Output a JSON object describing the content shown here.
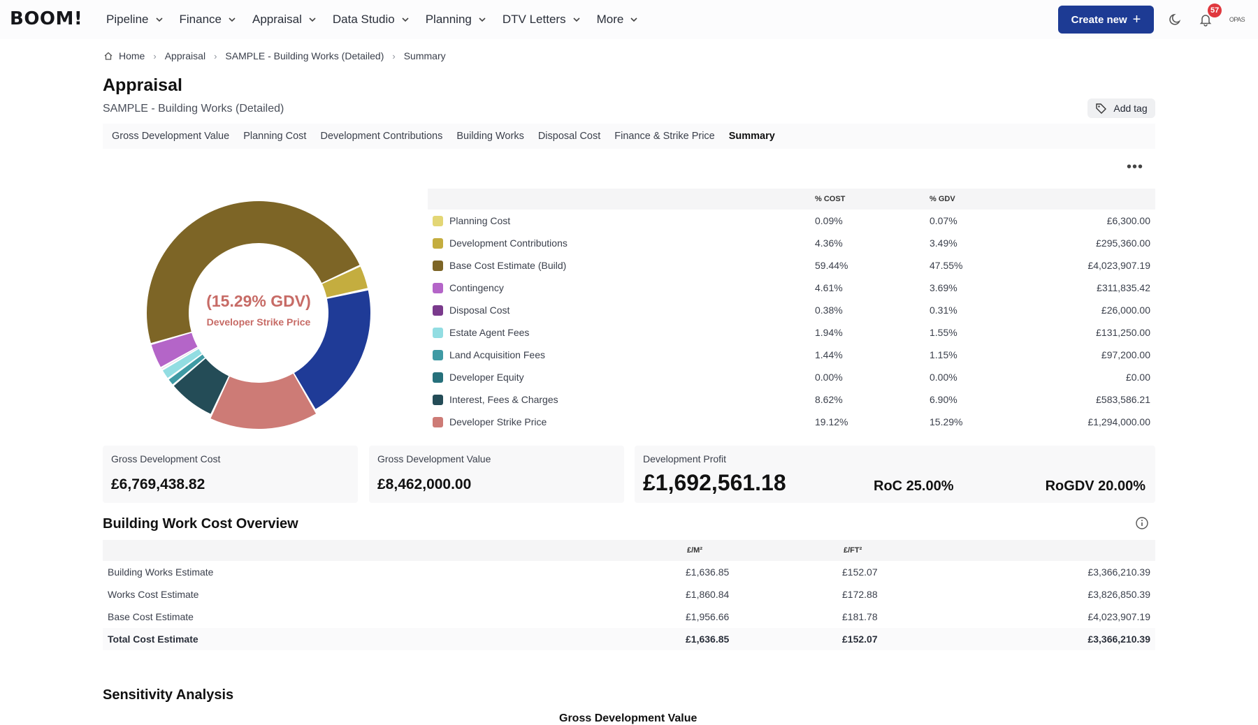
{
  "topbar": {
    "logo": "BOOM!",
    "nav": [
      "Pipeline",
      "Finance",
      "Appraisal",
      "Data Studio",
      "Planning",
      "DTV Letters",
      "More"
    ],
    "create_label": "Create new",
    "notification_count": "57",
    "avatar_text": "OPAS"
  },
  "breadcrumb": [
    "Home",
    "Appraisal",
    "SAMPLE - Building Works (Detailed)",
    "Summary"
  ],
  "header": {
    "title": "Appraisal",
    "subtitle": "SAMPLE - Building Works (Detailed)",
    "tag_label": "Add tag"
  },
  "tabs": [
    "Gross Development Value",
    "Planning Cost",
    "Development Contributions",
    "Building Works",
    "Disposal Cost",
    "Finance & Strike Price",
    "Summary"
  ],
  "active_tab": "Summary",
  "donut": {
    "center_value": "(15.29% GDV)",
    "center_label": "Developer Strike Price"
  },
  "cost_table": {
    "headers": {
      "pct_cost": "% COST",
      "pct_gdv": "% GDV"
    },
    "rows": [
      {
        "label": "Planning Cost",
        "pct_cost": "0.09%",
        "pct_gdv": "0.07%",
        "amount": "£6,300.00",
        "color": "#e3d675"
      },
      {
        "label": "Development Contributions",
        "pct_cost": "4.36%",
        "pct_gdv": "3.49%",
        "amount": "£295,360.00",
        "color": "#c4ad3f"
      },
      {
        "label": "Base Cost Estimate (Build)",
        "pct_cost": "59.44%",
        "pct_gdv": "47.55%",
        "amount": "£4,023,907.19",
        "color": "#7d6526"
      },
      {
        "label": "Contingency",
        "pct_cost": "4.61%",
        "pct_gdv": "3.69%",
        "amount": "£311,835.42",
        "color": "#b465c8"
      },
      {
        "label": "Disposal Cost",
        "pct_cost": "0.38%",
        "pct_gdv": "0.31%",
        "amount": "£26,000.00",
        "color": "#7a3a8c"
      },
      {
        "label": "Estate Agent Fees",
        "pct_cost": "1.94%",
        "pct_gdv": "1.55%",
        "amount": "£131,250.00",
        "color": "#92dde2"
      },
      {
        "label": "Land Acquisition Fees",
        "pct_cost": "1.44%",
        "pct_gdv": "1.15%",
        "amount": "£97,200.00",
        "color": "#3f9aa4"
      },
      {
        "label": "Developer Equity",
        "pct_cost": "0.00%",
        "pct_gdv": "0.00%",
        "amount": "£0.00",
        "color": "#26707b"
      },
      {
        "label": "Interest, Fees & Charges",
        "pct_cost": "8.62%",
        "pct_gdv": "6.90%",
        "amount": "£583,586.21",
        "color": "#244c57"
      },
      {
        "label": "Developer Strike Price",
        "pct_cost": "19.12%",
        "pct_gdv": "15.29%",
        "amount": "£1,294,000.00",
        "color": "#cd7b76"
      }
    ]
  },
  "donut_ring": [
    {
      "label": "Base Cost Estimate (Build)",
      "pct_gdv": 47.55,
      "color": "#7d6526"
    },
    {
      "label": "Development Contributions",
      "pct_gdv": 3.49,
      "color": "#c4ad3f"
    },
    {
      "label": "Planning Cost",
      "pct_gdv": 0.07,
      "color": "#e3d675"
    },
    {
      "label": "Developer Profit",
      "pct_gdv": 20.0,
      "color": "#1f3b97"
    },
    {
      "label": "Developer Strike Price",
      "pct_gdv": 15.29,
      "color": "#cd7b76"
    },
    {
      "label": "Interest, Fees & Charges",
      "pct_gdv": 6.9,
      "color": "#244c57"
    },
    {
      "label": "Developer Equity",
      "pct_gdv": 0.0,
      "color": "#26707b"
    },
    {
      "label": "Land Acquisition Fees",
      "pct_gdv": 1.15,
      "color": "#3f9aa4"
    },
    {
      "label": "Estate Agent Fees",
      "pct_gdv": 1.55,
      "color": "#92dde2"
    },
    {
      "label": "Disposal Cost",
      "pct_gdv": 0.31,
      "color": "#7a3a8c"
    },
    {
      "label": "Contingency",
      "pct_gdv": 3.69,
      "color": "#b465c8"
    }
  ],
  "summary": {
    "gdc_label": "Gross Development Cost",
    "gdc_value": "£6,769,438.82",
    "gdv_label": "Gross Development Value",
    "gdv_value": "£8,462,000.00",
    "profit_label": "Development Profit",
    "profit_value": "£1,692,561.18",
    "roc": "RoC 25.00%",
    "rogdv": "RoGDV 20.00%"
  },
  "building_work": {
    "title": "Building Work Cost Overview",
    "headers": {
      "m2": "£/M²",
      "ft2": "£/FT²"
    },
    "rows": [
      {
        "name": "Building Works Estimate",
        "m2": "£1,636.85",
        "ft2": "£152.07",
        "total": "£3,366,210.39"
      },
      {
        "name": "Works Cost Estimate",
        "m2": "£1,860.84",
        "ft2": "£172.88",
        "total": "£3,826,850.39"
      },
      {
        "name": "Base Cost Estimate",
        "m2": "£1,956.66",
        "ft2": "£181.78",
        "total": "£4,023,907.19"
      },
      {
        "name": "Total Cost Estimate",
        "m2": "£1,636.85",
        "ft2": "£152.07",
        "total": "£3,366,210.39"
      }
    ]
  },
  "sensitivity": {
    "title": "Sensitivity Analysis",
    "subtitle": "Gross Development Value"
  }
}
